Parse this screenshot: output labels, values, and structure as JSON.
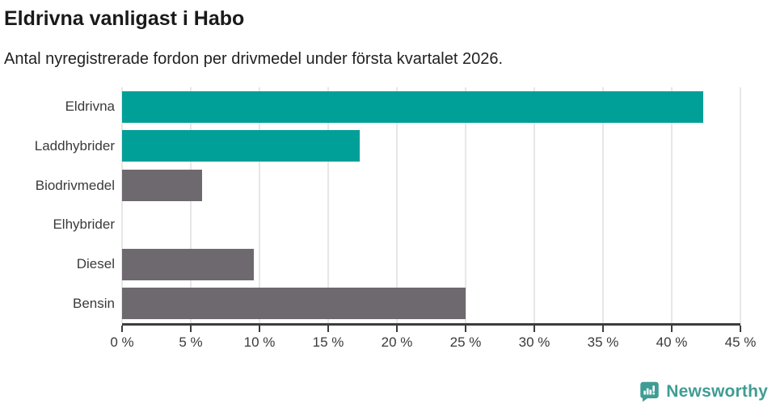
{
  "chart_data": {
    "type": "bar",
    "orientation": "horizontal",
    "title": "Eldrivna vanligast i Habo",
    "subtitle": "Antal nyregistrerade fordon per drivmedel under första kvartalet 2026.",
    "categories": [
      "Eldrivna",
      "Laddhybrider",
      "Biodrivmedel",
      "Elhybrider",
      "Diesel",
      "Bensin"
    ],
    "values": [
      42.3,
      17.3,
      5.8,
      0,
      9.6,
      25
    ],
    "unit": "%",
    "xlabel": "",
    "ylabel": "",
    "xlim": [
      0,
      45
    ],
    "x_tick_values": [
      0,
      5,
      10,
      15,
      20,
      25,
      30,
      35,
      40,
      45
    ],
    "x_tick_labels": [
      "0 %",
      "5 %",
      "10 %",
      "15 %",
      "20 %",
      "25 %",
      "30 %",
      "35 %",
      "40 %",
      "45 %"
    ],
    "bar_colors": [
      "#009f97",
      "#009f97",
      "#6d696e",
      "#6d696e",
      "#6d696e",
      "#6d696e"
    ],
    "accent_color": "#009f97",
    "neutral_color": "#6d696e",
    "grid": "vertical-gridlines-on",
    "legend": "none"
  },
  "footer": {
    "brand": "Newsworthy",
    "brand_color": "#3f9c94",
    "logo_icon": "speech-bubble-bar-chart-exclamation-icon"
  }
}
